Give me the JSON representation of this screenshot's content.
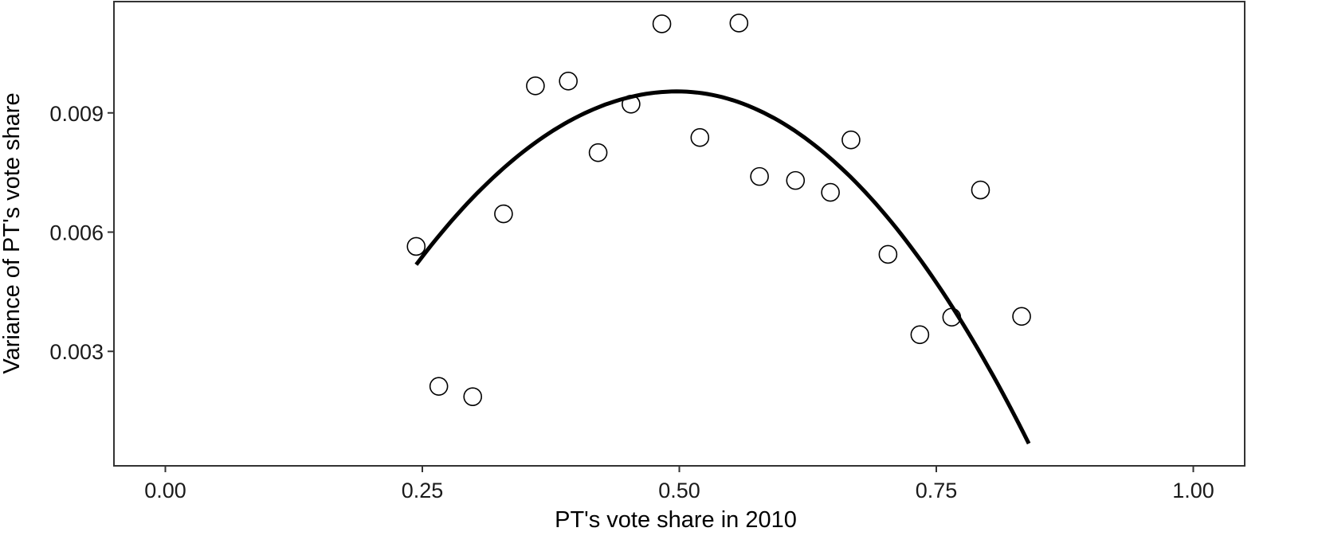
{
  "chart_data": {
    "type": "scatter",
    "title": "",
    "xlabel": "PT's vote share in 2010",
    "ylabel": "Variance of PT's vote share",
    "xlim": [
      -0.05,
      1.05
    ],
    "ylim": [
      0.00012,
      0.0118
    ],
    "x_ticks": [
      0.0,
      0.25,
      0.5,
      0.75,
      1.0
    ],
    "x_tick_labels": [
      "0.00",
      "0.25",
      "0.50",
      "0.75",
      "1.00"
    ],
    "y_ticks": [
      0.003,
      0.006,
      0.009
    ],
    "y_tick_labels": [
      "0.003",
      "0.006",
      "0.009"
    ],
    "grid": false,
    "legend": null,
    "marker": "open-circle",
    "points": [
      {
        "x": 0.244,
        "y": 0.00564
      },
      {
        "x": 0.266,
        "y": 0.00212
      },
      {
        "x": 0.299,
        "y": 0.00186
      },
      {
        "x": 0.329,
        "y": 0.00646
      },
      {
        "x": 0.36,
        "y": 0.00968
      },
      {
        "x": 0.392,
        "y": 0.0098
      },
      {
        "x": 0.421,
        "y": 0.008
      },
      {
        "x": 0.453,
        "y": 0.00922
      },
      {
        "x": 0.483,
        "y": 0.01124
      },
      {
        "x": 0.52,
        "y": 0.00838
      },
      {
        "x": 0.558,
        "y": 0.01126
      },
      {
        "x": 0.578,
        "y": 0.0074
      },
      {
        "x": 0.613,
        "y": 0.0073
      },
      {
        "x": 0.647,
        "y": 0.007
      },
      {
        "x": 0.667,
        "y": 0.00832
      },
      {
        "x": 0.703,
        "y": 0.00544
      },
      {
        "x": 0.734,
        "y": 0.00342
      },
      {
        "x": 0.765,
        "y": 0.00386
      },
      {
        "x": 0.793,
        "y": 0.00706
      },
      {
        "x": 0.833,
        "y": 0.00388
      }
    ],
    "fit_curve": {
      "type": "quadratic",
      "x_range": [
        0.244,
        0.84
      ],
      "vertex": {
        "x": 0.498,
        "y": 0.00954
      },
      "start": {
        "x": 0.244,
        "y": 0.00518
      },
      "end": {
        "x": 0.84,
        "y": 0.00068
      }
    }
  }
}
